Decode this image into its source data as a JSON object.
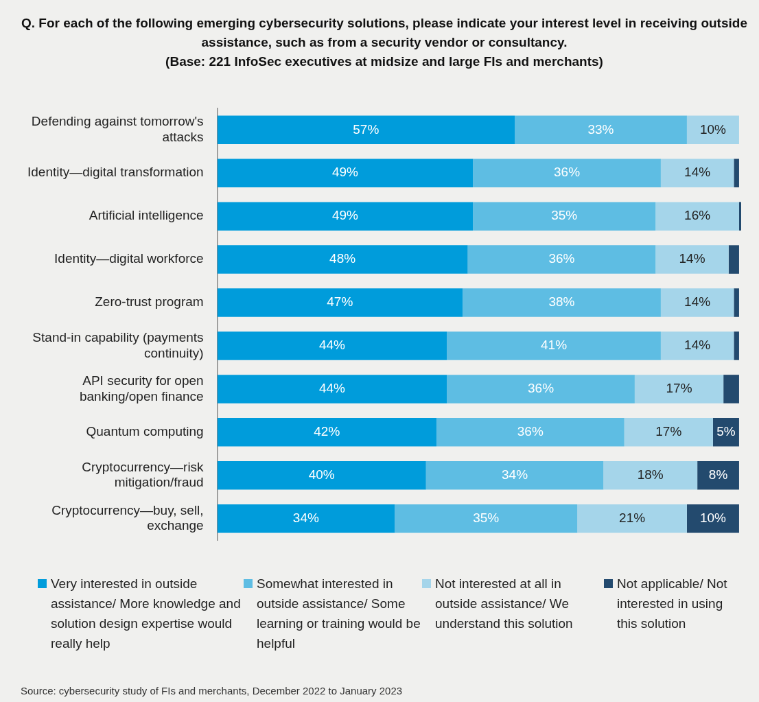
{
  "chart_data": {
    "type": "bar",
    "orientation": "horizontal",
    "stacked": true,
    "title": "Q. For each of the following emerging cybersecurity solutions, please indicate your interest level in receiving outside assistance, such as from a security vendor or consultancy.",
    "subtitle": "(Base: 221 InfoSec executives at midsize and large FIs and merchants)",
    "categories": [
      "Defending against tomorrow's attacks",
      "Identity—digital transformation",
      "Artificial intelligence",
      "Identity—digital workforce",
      "Zero-trust program",
      "Stand-in capability (payments continuity)",
      "API security for open banking/open finance",
      "Quantum computing",
      "Cryptocurrency—risk mitigation/fraud",
      "Cryptocurrency—buy, sell, exchange"
    ],
    "series": [
      {
        "name": "Very interested in outside assistance/ More knowledge and solution design expertise would really help",
        "color": "#009cdb",
        "values": [
          57,
          49,
          49,
          48,
          47,
          44,
          44,
          42,
          40,
          34
        ],
        "value_labels": [
          "57%",
          "49%",
          "49%",
          "48%",
          "47%",
          "44%",
          "44%",
          "42%",
          "40%",
          "34%"
        ]
      },
      {
        "name": "Somewhat interested in outside assistance/ Some learning or training would be helpful",
        "color": "#5ebde3",
        "values": [
          33,
          36,
          35,
          36,
          38,
          41,
          36,
          36,
          34,
          35
        ],
        "value_labels": [
          "33%",
          "36%",
          "35%",
          "36%",
          "38%",
          "41%",
          "36%",
          "36%",
          "34%",
          "35%"
        ]
      },
      {
        "name": "Not interested at all in outside assistance/ We understand this solution",
        "color": "#a5d5ea",
        "values": [
          10,
          14,
          16,
          14,
          14,
          14,
          17,
          17,
          18,
          21
        ],
        "value_labels": [
          "10%",
          "14%",
          "16%",
          "14%",
          "14%",
          "14%",
          "17%",
          "17%",
          "18%",
          "21%"
        ]
      },
      {
        "name": "Not applicable/ Not interested in using this solution",
        "color": "#234a6e",
        "values": [
          0,
          1,
          0.4,
          2,
          1,
          1,
          3,
          5,
          8,
          10
        ],
        "value_labels": [
          null,
          null,
          null,
          null,
          null,
          null,
          null,
          "5%",
          "8%",
          "10%"
        ]
      }
    ],
    "xlim": [
      0,
      100.4
    ],
    "tick_labels": "y",
    "grid": false,
    "legend": "bottom",
    "annotations": [
      "Source: cybersecurity study of FIs and merchants, December 2022 to January 2023"
    ]
  }
}
